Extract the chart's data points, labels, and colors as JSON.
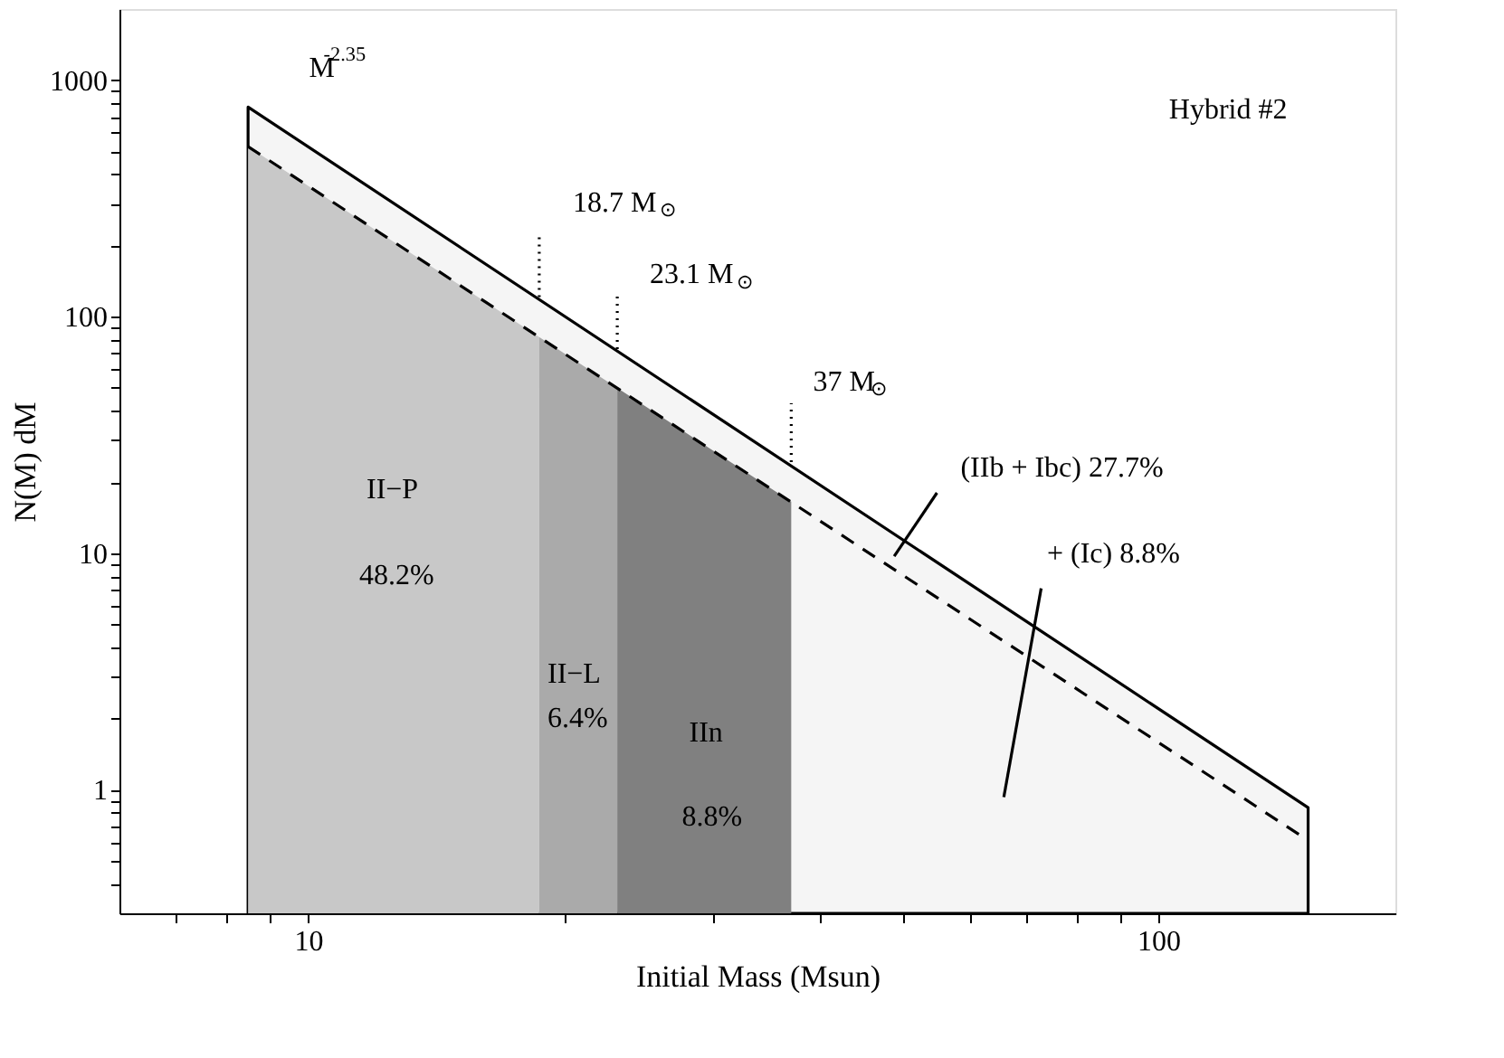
{
  "chart_data": {
    "type": "area",
    "xlabel": "Initial Mass (Msun)",
    "ylabel": "N(M) dM",
    "log": "xy",
    "xlim": [
      6,
      190
    ],
    "ylim": [
      0.3,
      2000
    ],
    "xticks": [
      {
        "value": 7,
        "label": null
      },
      {
        "value": 8,
        "label": null
      },
      {
        "value": 9,
        "label": null
      },
      10,
      {
        "value": 20,
        "label": null
      },
      {
        "value": 30,
        "label": null
      },
      {
        "value": 40,
        "label": null
      },
      {
        "value": 50,
        "label": null
      },
      {
        "value": 60,
        "label": null
      },
      {
        "value": 70,
        "label": null
      },
      {
        "value": 80,
        "label": null
      },
      {
        "value": 90,
        "label": null
      },
      100
    ],
    "yticks": [
      {
        "value": 0.4,
        "label": null
      },
      {
        "value": 0.5,
        "label": null
      },
      {
        "value": 0.6,
        "label": null
      },
      {
        "value": 0.7,
        "label": null
      },
      {
        "value": 0.8,
        "label": null
      },
      {
        "value": 0.9,
        "label": null
      },
      1,
      {
        "value": 2,
        "label": null
      },
      {
        "value": 3,
        "label": null
      },
      {
        "value": 4,
        "label": null
      },
      {
        "value": 5,
        "label": null
      },
      {
        "value": 6,
        "label": null
      },
      {
        "value": 7,
        "label": null
      },
      {
        "value": 8,
        "label": null
      },
      {
        "value": 9,
        "label": null
      },
      10,
      {
        "value": 20,
        "label": null
      },
      {
        "value": 30,
        "label": null
      },
      {
        "value": 40,
        "label": null
      },
      {
        "value": 50,
        "label": null
      },
      {
        "value": 60,
        "label": null
      },
      {
        "value": 70,
        "label": null
      },
      {
        "value": 80,
        "label": null
      },
      {
        "value": 90,
        "label": null
      },
      100,
      {
        "value": 200,
        "label": null
      },
      {
        "value": 300,
        "label": null
      },
      {
        "value": 400,
        "label": null
      },
      {
        "value": 500,
        "label": null
      },
      {
        "value": 600,
        "label": null
      },
      {
        "value": 700,
        "label": null
      },
      {
        "value": 800,
        "label": null
      },
      {
        "value": 900,
        "label": null
      },
      1000
    ],
    "series": [
      {
        "color": "#f5f5f5",
        "line_style": "solid",
        "x": [
          8.5,
          150
        ],
        "values": [
          770,
          0.84
        ]
      },
      {
        "color": "#c8c8c8",
        "x": [
          8.5,
          18.7
        ],
        "values": [
          524,
          82
        ]
      },
      {
        "color": "#aaaaaa",
        "x": [
          18.7,
          23.1
        ],
        "values": [
          82,
          50
        ]
      },
      {
        "color": "#808080",
        "x": [
          23.1,
          37
        ],
        "values": [
          50,
          16.5
        ]
      },
      {
        "type": "line",
        "color": "#000000",
        "line_style": "dashed",
        "x": [
          8.5,
          150
        ],
        "values": [
          524,
          0.61
        ]
      },
      {
        "type": "line",
        "color": "#000000",
        "line_style": "dotted",
        "x": [
          18.7,
          18.7
        ],
        "values": [
          121,
          218
        ]
      },
      {
        "type": "line",
        "color": "#000000",
        "line_style": "dotted",
        "x": [
          23.1,
          23.1
        ],
        "values": [
          73,
          124
        ]
      },
      {
        "type": "line",
        "color": "#000000",
        "line_style": "dotted",
        "x": [
          37,
          37
        ],
        "values": [
          24.3,
          43
        ]
      },
      {
        "type": "line",
        "color": "#000000",
        "line_style": "solid",
        "x": [
          54.9,
          48.9
        ],
        "values": [
          18,
          9.7
        ]
      },
      {
        "type": "line",
        "color": "#000000",
        "line_style": "solid",
        "x": [
          65.8,
          72.8
        ],
        "values": [
          0.93,
          7.1
        ]
      }
    ],
    "annotations": [
      "M$^{-2.35}$",
      "18.7 M$_{⊙}$",
      "23.1 M$_{⊙}$",
      "37 M$_{⊙}$",
      "(IIb + Ibc) 27.7%",
      "+ (Ic) 8.8%",
      "II−P",
      "48.2%",
      "II−L",
      "6.4%",
      "IIn",
      "8.8%",
      "Hybrid #2"
    ]
  }
}
